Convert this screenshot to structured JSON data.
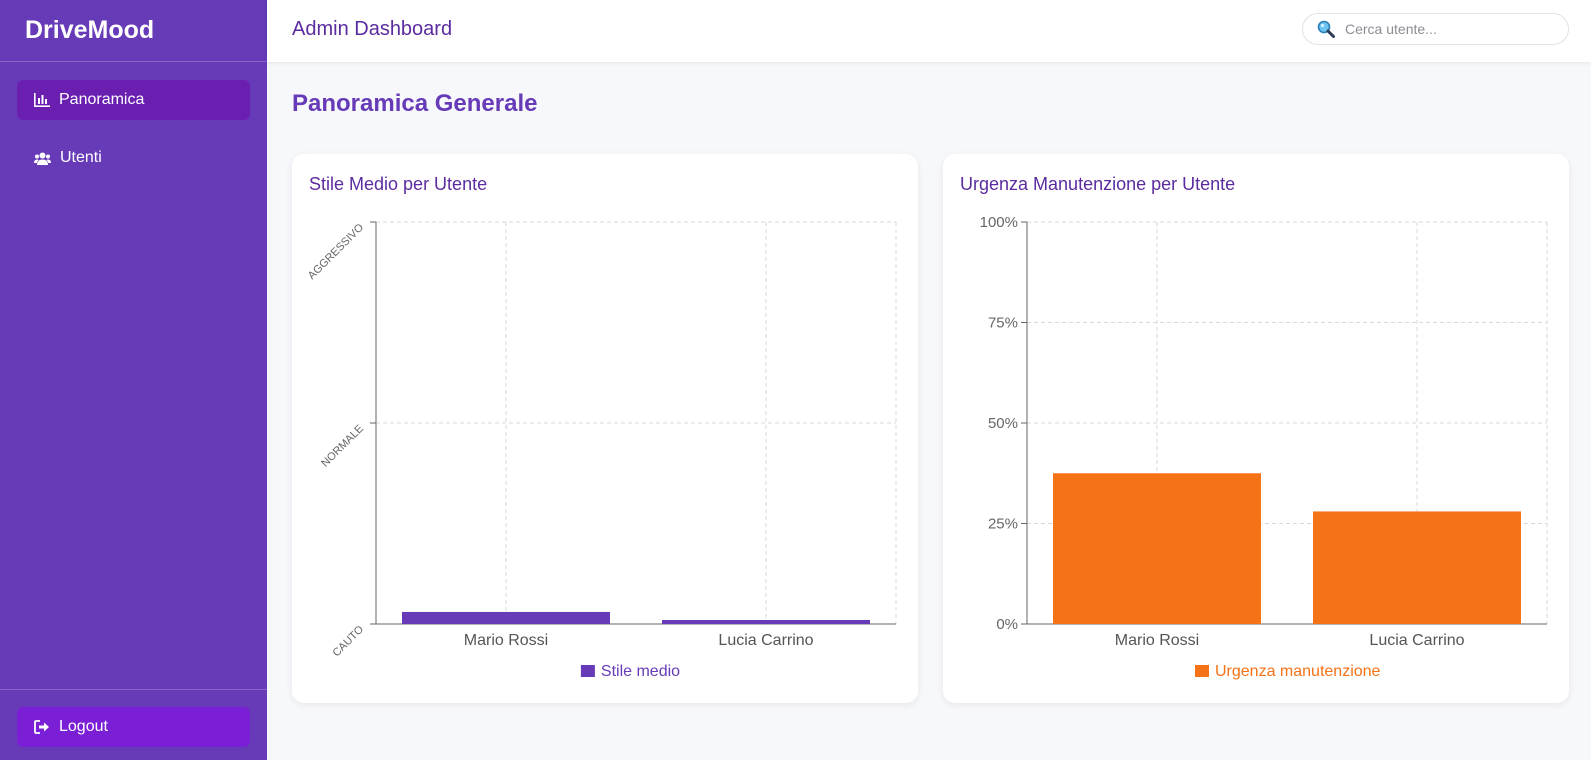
{
  "app": {
    "brand": "DriveMood"
  },
  "sidebar": {
    "items": [
      {
        "label": "Panoramica",
        "icon": "bar-chart-icon",
        "active": true
      },
      {
        "label": "Utenti",
        "icon": "users-icon",
        "active": false
      }
    ],
    "logout_label": "Logout",
    "logout_icon": "sign-out-icon"
  },
  "header": {
    "title": "Admin Dashboard",
    "search_placeholder": "Cerca utente...",
    "search_icon": "magnifier-icon"
  },
  "main": {
    "title": "Panoramica Generale"
  },
  "colors": {
    "sidebar": "#673ab7",
    "active_item": "#6a1fb0",
    "logout": "#7b1fd6",
    "style_bar": "#673ab7",
    "urgency_bar": "#f57216"
  },
  "chart_data": [
    {
      "type": "bar",
      "title": "Stile Medio per Utente",
      "categories": [
        "Mario Rossi",
        "Lucia Carrino"
      ],
      "y_tick_labels": [
        "CAUTO",
        "NORMALE",
        "AGGRESSIVO"
      ],
      "ylim": [
        0,
        2
      ],
      "series": [
        {
          "name": "Stile medio",
          "values": [
            0.06,
            0.02
          ]
        }
      ],
      "grid": true,
      "legend": "bottom"
    },
    {
      "type": "bar",
      "title": "Urgenza Manutenzione per Utente",
      "categories": [
        "Mario Rossi",
        "Lucia Carrino"
      ],
      "y_tick_labels": [
        "0%",
        "25%",
        "50%",
        "75%",
        "100%"
      ],
      "ylim": [
        0,
        100
      ],
      "series": [
        {
          "name": "Urgenza manutenzione",
          "values": [
            37.5,
            28
          ]
        }
      ],
      "grid": true,
      "legend": "bottom"
    }
  ]
}
